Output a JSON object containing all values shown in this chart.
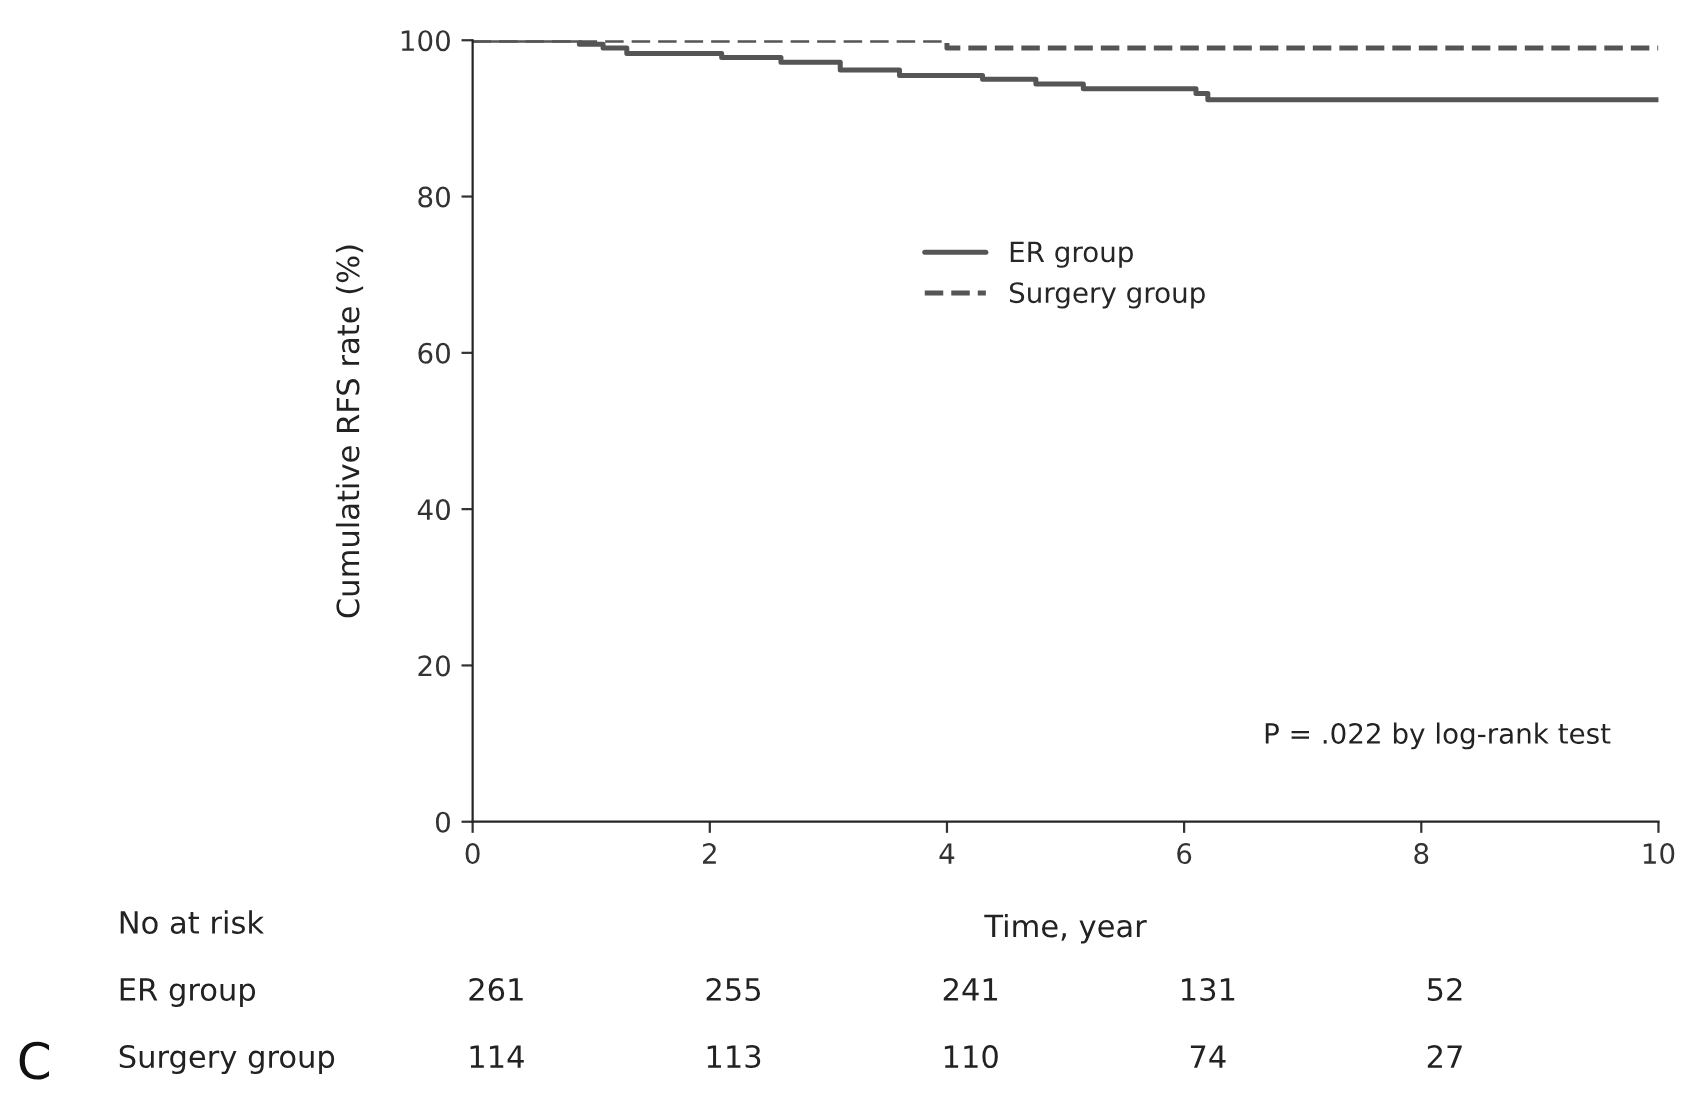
{
  "chart_data": {
    "type": "step",
    "xlabel": "Time, year",
    "ylabel": "Cumulative RFS rate (%)",
    "xlim": [
      0,
      10
    ],
    "xticks": [
      0,
      2,
      4,
      6,
      8,
      10
    ],
    "ylim": [
      0,
      100
    ],
    "yticks": [
      0,
      20,
      40,
      60,
      80,
      100
    ],
    "grid": false,
    "legend": "center",
    "marker": "none",
    "series": [
      {
        "name": "ER group",
        "color": "#555555",
        "line_style": "solid",
        "x": [
          0,
          0.9,
          1.1,
          1.3,
          2.1,
          2.6,
          3.1,
          3.6,
          4.3,
          4.75,
          5.15,
          6.1,
          6.2,
          10
        ],
        "values": [
          100,
          99.5,
          99,
          98.3,
          97.8,
          97.2,
          96.2,
          95.5,
          95,
          94.4,
          93.8,
          93.2,
          92.4,
          92.4
        ]
      },
      {
        "name": "Surgery group",
        "color": "#555555",
        "line_style": "dashed",
        "x": [
          0,
          4,
          10
        ],
        "values": [
          100,
          99,
          99
        ]
      }
    ],
    "annotations": [
      "P = .022 by log-rank test",
      "No at risk",
      "ER group",
      "261",
      "255",
      "241",
      "131",
      "52",
      "Surgery group",
      "114",
      "113",
      "110",
      "74",
      "27",
      "C"
    ]
  }
}
